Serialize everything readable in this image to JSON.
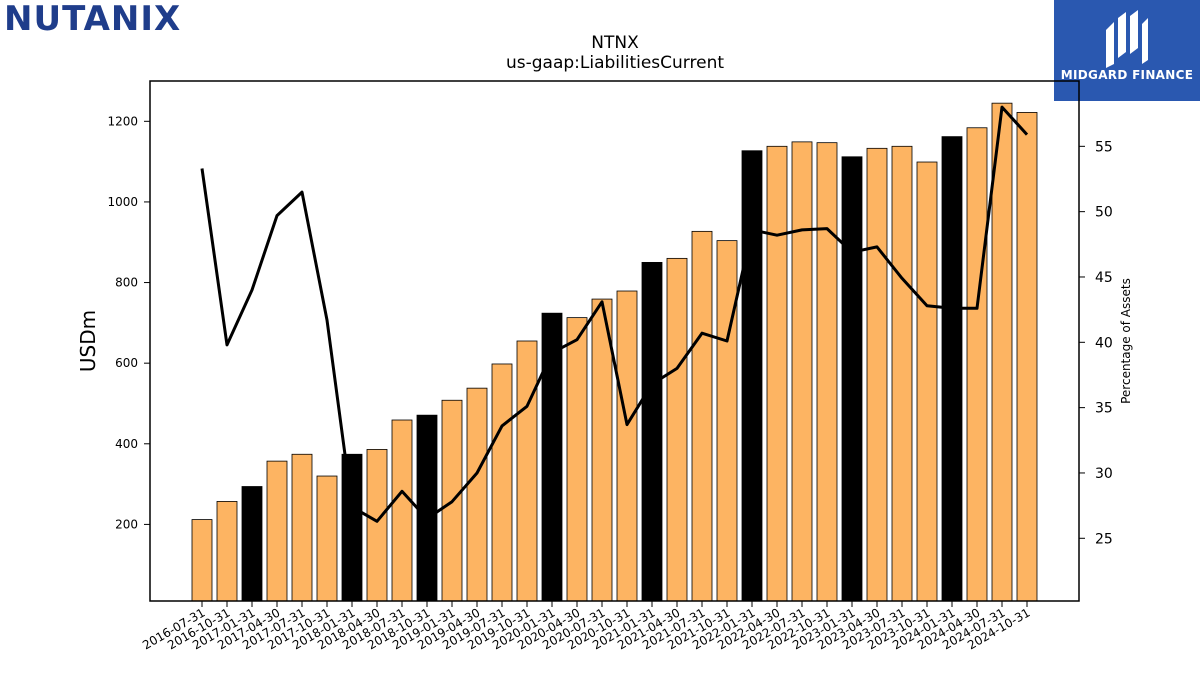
{
  "header": {
    "company_logo_text": "NUTANIX",
    "badge_label": "MIDGARD FINANCE"
  },
  "chart_data": {
    "type": "bar",
    "title": "NTNX",
    "subtitle": "us-gaap:LiabilitiesCurrent",
    "ylabel": "USDm",
    "y2label": "Percentage of Assets",
    "ylim": [
      10,
      1300
    ],
    "y2lim": [
      20.2,
      60.0
    ],
    "yticks": [
      200,
      400,
      600,
      800,
      1000,
      1200
    ],
    "y2ticks": [
      25,
      30,
      35,
      40,
      45,
      50,
      55
    ],
    "grid": false,
    "colors": {
      "bar_default": "#fdb462",
      "bar_highlight": "#000000",
      "line": "#000000"
    },
    "categories": [
      "2016-07-31",
      "2016-10-31",
      "2017-01-31",
      "2017-04-30",
      "2017-07-31",
      "2017-10-31",
      "2018-01-31",
      "2018-04-30",
      "2018-07-31",
      "2018-10-31",
      "2019-01-31",
      "2019-04-30",
      "2019-07-31",
      "2019-10-31",
      "2020-01-31",
      "2020-04-30",
      "2020-07-31",
      "2020-10-31",
      "2021-01-31",
      "2021-04-30",
      "2021-07-31",
      "2021-10-31",
      "2022-01-31",
      "2022-04-30",
      "2022-07-31",
      "2022-10-31",
      "2023-01-31",
      "2023-04-30",
      "2023-07-31",
      "2023-10-31",
      "2024-01-31",
      "2024-04-30",
      "2024-07-31",
      "2024-10-31"
    ],
    "series": [
      {
        "kind": "bar",
        "values": [
          212,
          257,
          294,
          357,
          374,
          320,
          374,
          386,
          459,
          471,
          508,
          538,
          598,
          655,
          724,
          713,
          759,
          779,
          850,
          860,
          927,
          904,
          1127,
          1138,
          1149,
          1147,
          1112,
          1133,
          1138,
          1099,
          1162,
          1184,
          1245,
          1222
        ],
        "highlight": [
          false,
          false,
          true,
          false,
          false,
          false,
          true,
          false,
          false,
          true,
          false,
          false,
          false,
          false,
          true,
          false,
          false,
          false,
          true,
          false,
          false,
          false,
          true,
          false,
          false,
          false,
          true,
          false,
          false,
          false,
          true,
          false,
          false,
          false
        ]
      },
      {
        "kind": "line",
        "axis": "right",
        "values": [
          53.3,
          39.8,
          44.0,
          49.7,
          51.5,
          41.7,
          27.4,
          26.3,
          28.6,
          26.5,
          27.8,
          30.0,
          33.6,
          35.1,
          39.2,
          40.2,
          43.1,
          33.7,
          36.8,
          38.0,
          40.7,
          40.1,
          48.6,
          48.2,
          48.6,
          48.7,
          46.9,
          47.3,
          44.9,
          42.8,
          42.6,
          42.6,
          58.0,
          55.9
        ]
      }
    ]
  }
}
